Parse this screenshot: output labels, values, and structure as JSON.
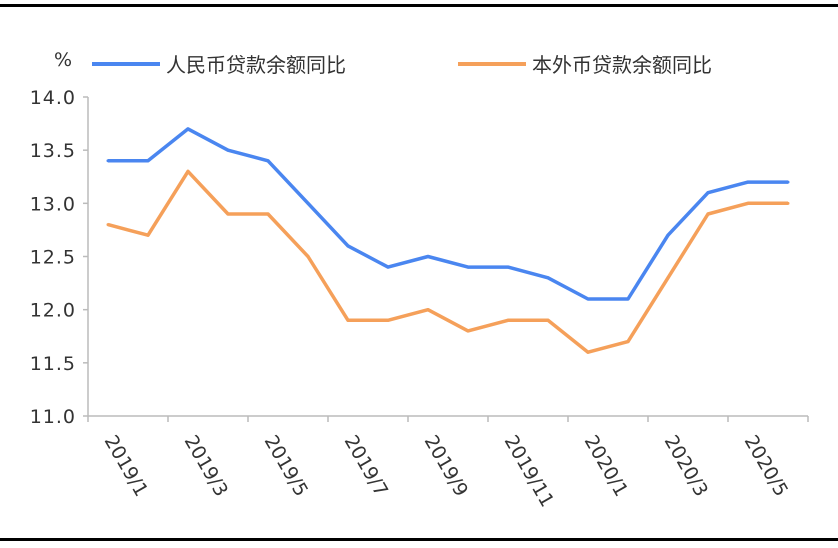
{
  "chart_data": {
    "type": "line",
    "ylabel": "%",
    "ylim": [
      11.0,
      14.0
    ],
    "yticks": [
      "11.0",
      "11.5",
      "12.0",
      "12.5",
      "13.0",
      "13.5",
      "14.0"
    ],
    "grid": false,
    "legend_position": "top",
    "categories": [
      "2019/1",
      "2019/2",
      "2019/3",
      "2019/4",
      "2019/5",
      "2019/6",
      "2019/7",
      "2019/8",
      "2019/9",
      "2019/10",
      "2019/11",
      "2019/12",
      "2020/1",
      "2020/2",
      "2020/3",
      "2020/4",
      "2020/5",
      "2020/6"
    ],
    "xtick_labels": [
      "2019/1",
      "2019/3",
      "2019/5",
      "2019/7",
      "2019/9",
      "2019/11",
      "2020/1",
      "2020/3",
      "2020/5"
    ],
    "series": [
      {
        "name": "人民币贷款余额同比",
        "color": "#4a86f0",
        "values": [
          13.4,
          13.4,
          13.7,
          13.5,
          13.4,
          13.0,
          12.6,
          12.4,
          12.5,
          12.4,
          12.4,
          12.3,
          12.1,
          12.1,
          12.7,
          13.1,
          13.2,
          13.2
        ]
      },
      {
        "name": "本外币贷款余额同比",
        "color": "#f5a05a",
        "values": [
          12.8,
          12.7,
          13.3,
          12.9,
          12.9,
          12.5,
          11.9,
          11.9,
          12.0,
          11.8,
          11.9,
          11.9,
          11.6,
          11.7,
          12.3,
          12.9,
          13.0,
          13.0
        ]
      }
    ]
  }
}
